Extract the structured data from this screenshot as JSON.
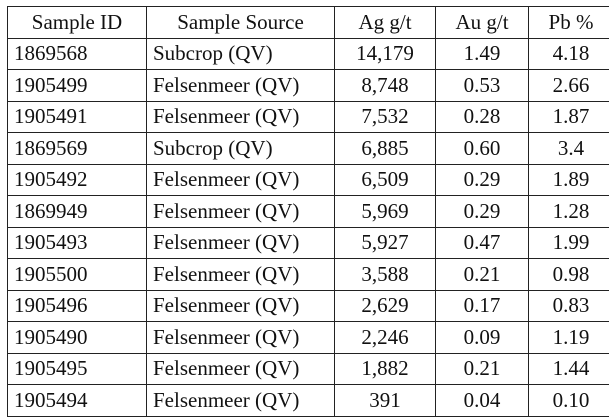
{
  "table": {
    "headers": {
      "sample_id": "Sample ID",
      "sample_source": "Sample Source",
      "ag": "Ag g/t",
      "au": "Au g/t",
      "pb": "Pb %"
    },
    "rows": [
      {
        "id": "1869568",
        "source": "Subcrop (QV)",
        "ag": "14,179",
        "au": "1.49",
        "pb": "4.18"
      },
      {
        "id": "1905499",
        "source": "Felsenmeer (QV)",
        "ag": "8,748",
        "au": "0.53",
        "pb": "2.66"
      },
      {
        "id": "1905491",
        "source": "Felsenmeer (QV)",
        "ag": "7,532",
        "au": "0.28",
        "pb": "1.87"
      },
      {
        "id": "1869569",
        "source": "Subcrop (QV)",
        "ag": "6,885",
        "au": "0.60",
        "pb": "3.4"
      },
      {
        "id": "1905492",
        "source": "Felsenmeer (QV)",
        "ag": "6,509",
        "au": "0.29",
        "pb": "1.89"
      },
      {
        "id": "1869949",
        "source": "Felsenmeer (QV)",
        "ag": "5,969",
        "au": "0.29",
        "pb": "1.28"
      },
      {
        "id": "1905493",
        "source": "Felsenmeer (QV)",
        "ag": "5,927",
        "au": "0.47",
        "pb": "1.99"
      },
      {
        "id": "1905500",
        "source": "Felsenmeer (QV)",
        "ag": "3,588",
        "au": "0.21",
        "pb": "0.98"
      },
      {
        "id": "1905496",
        "source": "Felsenmeer (QV)",
        "ag": "2,629",
        "au": "0.17",
        "pb": "0.83"
      },
      {
        "id": "1905490",
        "source": "Felsenmeer (QV)",
        "ag": "2,246",
        "au": "0.09",
        "pb": "1.19"
      },
      {
        "id": "1905495",
        "source": "Felsenmeer (QV)",
        "ag": "1,882",
        "au": "0.21",
        "pb": "1.44"
      },
      {
        "id": "1905494",
        "source": "Felsenmeer (QV)",
        "ag": "391",
        "au": "0.04",
        "pb": "0.10"
      }
    ]
  }
}
